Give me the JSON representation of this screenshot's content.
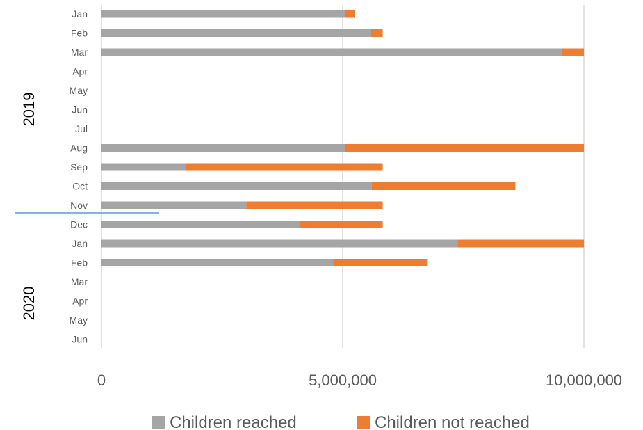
{
  "chart_data": {
    "type": "bar",
    "orientation": "horizontal",
    "stacked": true,
    "categories": [
      "Jan",
      "Feb",
      "Mar",
      "Apr",
      "May",
      "Jun",
      "Jul",
      "Aug",
      "Sep",
      "Oct",
      "Nov",
      "Dec",
      "Jan",
      "Feb",
      "Mar",
      "Apr",
      "May",
      "Jun"
    ],
    "groups": [
      {
        "label": "2019",
        "from": 0,
        "to": 11
      },
      {
        "label": "2020",
        "from": 12,
        "to": 17
      }
    ],
    "series": [
      {
        "name": "Children reached",
        "color": "#A5A5A5",
        "values": [
          5050000,
          5580000,
          9550000,
          0,
          0,
          0,
          0,
          5050000,
          1750000,
          5600000,
          3000000,
          4100000,
          7380000,
          4800000,
          0,
          0,
          0,
          0
        ]
      },
      {
        "name": "Children not reached",
        "color": "#ED7D31",
        "values": [
          200000,
          250000,
          450000,
          0,
          0,
          0,
          0,
          4950000,
          4080000,
          2980000,
          2830000,
          1730000,
          2620000,
          1950000,
          0,
          0,
          0,
          0
        ]
      }
    ],
    "xlim": [
      0,
      10000000
    ],
    "xticks": [
      0,
      5000000,
      10000000
    ],
    "xtick_labels": [
      "0",
      "5,000,000",
      "10,000,000"
    ],
    "grid": "vertical",
    "legend": "bottom",
    "title": "",
    "xlabel": "",
    "ylabel": ""
  }
}
